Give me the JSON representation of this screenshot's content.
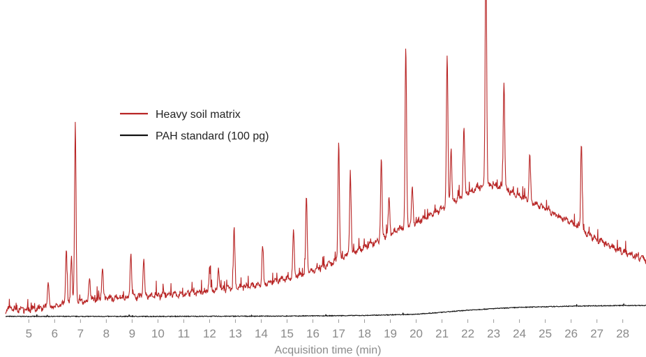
{
  "chart_data": {
    "type": "line",
    "title": "",
    "xlabel": "Acquisition time (min)",
    "ylabel": "",
    "xlim": [
      4.1,
      28.9
    ],
    "ylim": [
      0,
      100
    ],
    "x_ticks": [
      "5",
      "6",
      "7",
      "8",
      "9",
      "10",
      "11",
      "12",
      "13",
      "14",
      "15",
      "16",
      "17",
      "18",
      "19",
      "20",
      "21",
      "22",
      "23",
      "24",
      "25",
      "26",
      "27",
      "28"
    ],
    "grid": false,
    "legend_position": "upper-left",
    "legend": {
      "matrix_label": "Heavy soil matrix",
      "standard_label": "PAH standard (100 pg)"
    },
    "series": [
      {
        "name": "Heavy soil matrix",
        "color": "#b82525",
        "x": [
          4.1,
          4.3,
          4.5,
          5.0,
          5.5,
          6.0,
          6.5,
          7.0,
          7.5,
          8.0,
          8.5,
          9.0,
          9.5,
          10.0,
          10.5,
          11.0,
          11.5,
          12.0,
          12.5,
          13.0,
          13.5,
          14.0,
          14.5,
          15.0,
          15.5,
          16.0,
          16.5,
          17.0,
          17.5,
          18.0,
          18.5,
          19.0,
          19.5,
          20.0,
          20.5,
          21.0,
          21.5,
          22.0,
          22.5,
          23.0,
          23.5,
          24.0,
          24.5,
          25.0,
          25.5,
          26.0,
          26.5,
          27.0,
          27.5,
          28.0,
          28.5,
          28.9
        ],
        "values": [
          1.5,
          2.5,
          1.8,
          2.0,
          2.5,
          3.0,
          4.0,
          4.5,
          5.0,
          5.5,
          5.8,
          6.0,
          6.2,
          6.5,
          6.8,
          7.0,
          7.5,
          8.0,
          8.5,
          9.0,
          9.5,
          10.0,
          11.0,
          12.0,
          13.0,
          14.5,
          16.0,
          18.0,
          20.0,
          22.0,
          24.0,
          26.5,
          28.5,
          30.0,
          32.0,
          34.5,
          37.0,
          39.5,
          41.5,
          42.0,
          40.5,
          38.5,
          36.5,
          34.5,
          32.0,
          30.0,
          27.0,
          24.5,
          22.5,
          20.5,
          19.0,
          18.0
        ],
        "peaks": [
          {
            "x": 5.75,
            "height": 8
          },
          {
            "x": 6.45,
            "height": 18
          },
          {
            "x": 6.65,
            "height": 16
          },
          {
            "x": 6.8,
            "height": 57
          },
          {
            "x": 7.35,
            "height": 8
          },
          {
            "x": 7.85,
            "height": 10
          },
          {
            "x": 8.95,
            "height": 15
          },
          {
            "x": 9.45,
            "height": 12
          },
          {
            "x": 12.0,
            "height": 7
          },
          {
            "x": 12.35,
            "height": 7
          },
          {
            "x": 12.95,
            "height": 19
          },
          {
            "x": 14.05,
            "height": 12
          },
          {
            "x": 15.25,
            "height": 15
          },
          {
            "x": 15.75,
            "height": 25
          },
          {
            "x": 17.0,
            "height": 38
          },
          {
            "x": 17.45,
            "height": 27
          },
          {
            "x": 18.65,
            "height": 25
          },
          {
            "x": 18.95,
            "height": 12
          },
          {
            "x": 19.6,
            "height": 56
          },
          {
            "x": 19.85,
            "height": 12
          },
          {
            "x": 21.2,
            "height": 48
          },
          {
            "x": 21.35,
            "height": 18
          },
          {
            "x": 21.85,
            "height": 21
          },
          {
            "x": 22.7,
            "height": 78
          },
          {
            "x": 23.4,
            "height": 35
          },
          {
            "x": 24.4,
            "height": 15
          },
          {
            "x": 26.4,
            "height": 28
          }
        ]
      },
      {
        "name": "PAH standard (100 pg)",
        "color": "#111111",
        "x": [
          4.1,
          10.0,
          15.0,
          18.0,
          20.0,
          21.0,
          22.0,
          23.0,
          24.0,
          25.0,
          26.0,
          27.0,
          28.0,
          28.9
        ],
        "values": [
          0.5,
          0.5,
          0.6,
          0.8,
          1.2,
          1.8,
          2.5,
          3.0,
          3.4,
          3.6,
          3.8,
          3.9,
          4.0,
          4.0
        ]
      }
    ]
  }
}
